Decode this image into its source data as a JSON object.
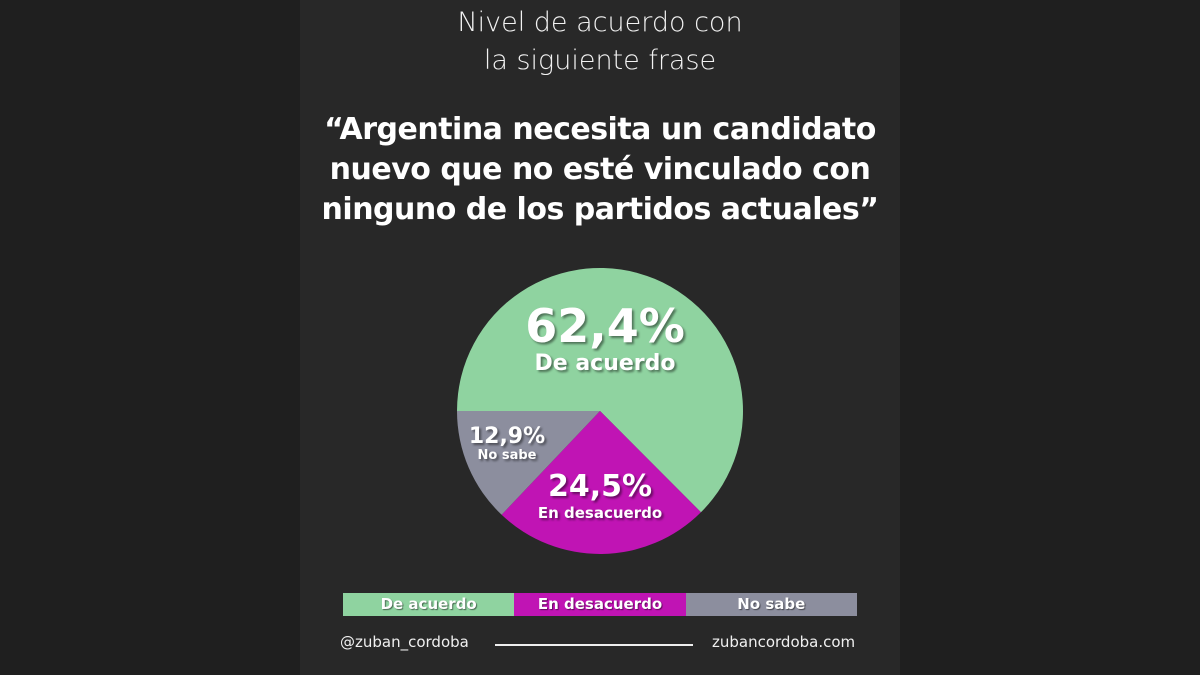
{
  "chart_data": {
    "type": "pie",
    "title": "Nivel de acuerdo con la siguiente frase",
    "title_lines": [
      "Nivel de acuerdo con",
      "la siguiente frase"
    ],
    "subtitle_lines": [
      "“Argentina necesita un candidato",
      "nuevo que no esté vinculado con",
      "ninguno de los partidos actuales”"
    ],
    "slices": [
      {
        "label": "De acuerdo",
        "value": 62.4,
        "display": "62,4%",
        "color": "#8fd3a0"
      },
      {
        "label": "En desacuerdo",
        "value": 24.5,
        "display": "24,5%",
        "color": "#c014b4"
      },
      {
        "label": "No sabe",
        "value": 12.9,
        "display": "12,9%",
        "color": "#8c8e9e"
      }
    ],
    "legend": [
      "De acuerdo",
      "En desacuerdo",
      "No sabe"
    ],
    "legend_position": "bottom"
  },
  "footer": {
    "handle": "@zuban_cordoba",
    "website": "zubancordoba.com"
  }
}
